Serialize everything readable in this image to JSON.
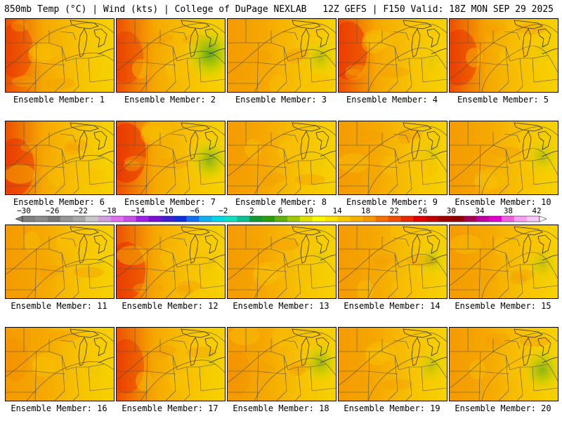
{
  "header": {
    "left": "850mb Temp (°C) | Wind (kts) | College of DuPage NEXLAB",
    "right": "12Z GEFS | F150 Valid: 18Z MON SEP 29 2025"
  },
  "members": [
    {
      "label": "Ensemble Member: 1",
      "warm": 0.75,
      "cool": 0.05
    },
    {
      "label": "Ensemble Member: 2",
      "warm": 0.7,
      "cool": 0.85
    },
    {
      "label": "Ensemble Member: 3",
      "warm": 0.3,
      "cool": 0.35
    },
    {
      "label": "Ensemble Member: 4",
      "warm": 0.85,
      "cool": 0.1
    },
    {
      "label": "Ensemble Member: 5",
      "warm": 0.8,
      "cool": 0.1
    },
    {
      "label": "Ensemble Member: 6",
      "warm": 0.85,
      "cool": 0.05
    },
    {
      "label": "Ensemble Member: 7",
      "warm": 0.9,
      "cool": 0.6
    },
    {
      "label": "Ensemble Member: 8",
      "warm": 0.4,
      "cool": 0.05
    },
    {
      "label": "Ensemble Member: 9",
      "warm": 0.35,
      "cool": 0.15
    },
    {
      "label": "Ensemble Member: 10",
      "warm": 0.3,
      "cool": 0.35
    },
    {
      "label": "Ensemble Member: 11",
      "warm": 0.35,
      "cool": 0.05
    },
    {
      "label": "Ensemble Member: 12",
      "warm": 0.85,
      "cool": 0.05
    },
    {
      "label": "Ensemble Member: 13",
      "warm": 0.3,
      "cool": 0.1
    },
    {
      "label": "Ensemble Member: 14",
      "warm": 0.2,
      "cool": 0.3
    },
    {
      "label": "Ensemble Member: 15",
      "warm": 0.3,
      "cool": 0.3
    },
    {
      "label": "Ensemble Member: 16",
      "warm": 0.45,
      "cool": 0.05
    },
    {
      "label": "Ensemble Member: 17",
      "warm": 0.75,
      "cool": 0.1
    },
    {
      "label": "Ensemble Member: 18",
      "warm": 0.45,
      "cool": 0.5
    },
    {
      "label": "Ensemble Member: 19",
      "warm": 0.35,
      "cool": 0.3
    },
    {
      "label": "Ensemble Member: 20",
      "warm": 0.4,
      "cool": 0.6
    }
  ],
  "colorbar": {
    "ticks": [
      "-30",
      "-26",
      "-22",
      "-18",
      "-14",
      "-10",
      "-6",
      "-2",
      "2",
      "6",
      "10",
      "14",
      "18",
      "22",
      "26",
      "30",
      "34",
      "38",
      "42"
    ],
    "colors": [
      "#808080",
      "#8c8c8c",
      "#787878",
      "#969696",
      "#a8a8a8",
      "#c8c8c8",
      "#d0a0e0",
      "#e070f0",
      "#c850e8",
      "#a020e8",
      "#7a10d8",
      "#4020d0",
      "#1030e0",
      "#1070f0",
      "#10b0f0",
      "#00d8e8",
      "#10e0c0",
      "#10c090",
      "#109a30",
      "#2a9e10",
      "#60b010",
      "#a0c800",
      "#e0e000",
      "#f8f800",
      "#f8e000",
      "#f8c800",
      "#f8b000",
      "#f89800",
      "#f87000",
      "#f05000",
      "#e82800",
      "#e00000",
      "#c00000",
      "#a00000",
      "#900000",
      "#a80050",
      "#c000a0",
      "#e000d0",
      "#f060e0",
      "#f8a0f0",
      "#f8c8f8"
    ]
  }
}
